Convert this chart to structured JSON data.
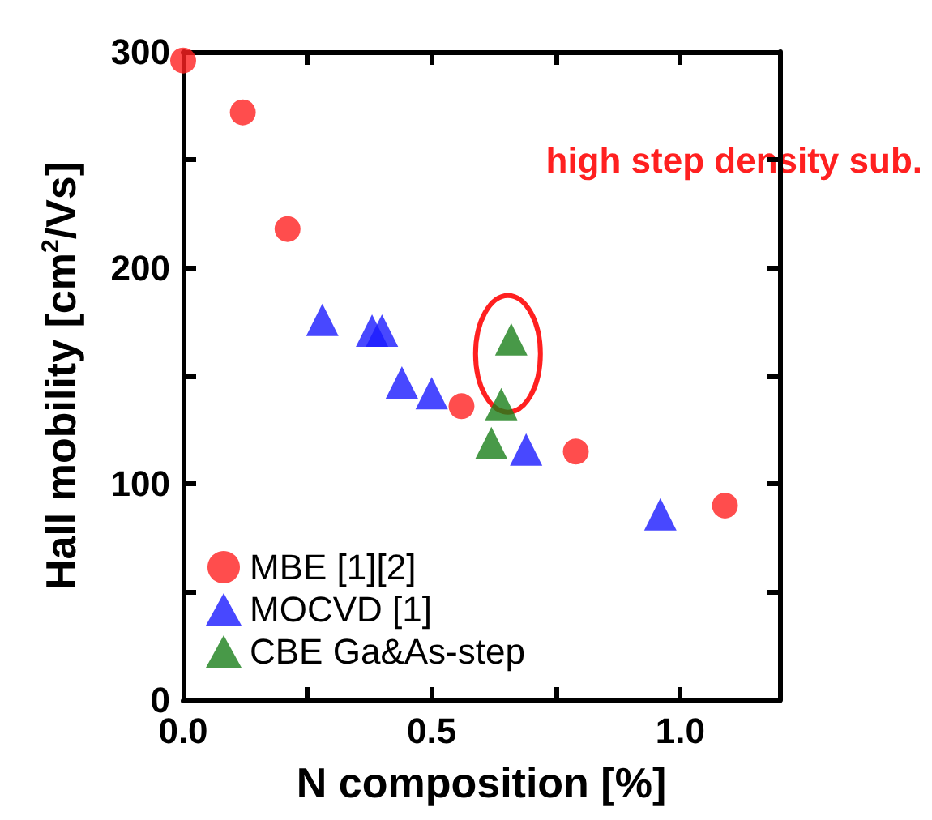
{
  "chart_data": {
    "type": "scatter",
    "xlabel": "N composition [%]",
    "ylabel": "Hall mobility [cm$^{2}$/Vs]",
    "annotations": [
      "high step density sub."
    ],
    "xlim": [
      0,
      1.2
    ],
    "xticks": [
      {
        "value": 0,
        "label": "0.0"
      },
      {
        "value": 0.25,
        "label": null
      },
      0.5,
      {
        "value": 0.75,
        "label": null
      },
      {
        "value": 1,
        "label": "1.0"
      }
    ],
    "ylim": [
      0,
      300
    ],
    "yticks": [
      0,
      {
        "value": 50,
        "label": null
      },
      100,
      {
        "value": 150,
        "label": null
      },
      200,
      {
        "value": 250,
        "label": null
      },
      300
    ],
    "grid": false,
    "legend": "bottom left",
    "series": [
      {
        "name": "MBE [1][2]",
        "color": "#ff2020",
        "marker": "circle",
        "x": [
          0,
          0.12,
          0.21,
          0.56,
          0.79,
          1.09
        ],
        "values": [
          296,
          272,
          218,
          136,
          115,
          90
        ]
      },
      {
        "name": "MOCVD [1]",
        "color": "#1a1aff",
        "marker": "triangle",
        "x": [
          0.28,
          0.38,
          0.4,
          0.44,
          0.5,
          0.69,
          0.96
        ],
        "values": [
          176,
          171,
          171,
          147,
          142,
          116,
          86
        ]
      },
      {
        "name": "CBE Ga&As-step",
        "color": "#1a7f1a",
        "marker": "triangle",
        "x": [
          0.66,
          0.64,
          0.62
        ],
        "values": [
          167,
          137,
          119
        ]
      }
    ]
  }
}
